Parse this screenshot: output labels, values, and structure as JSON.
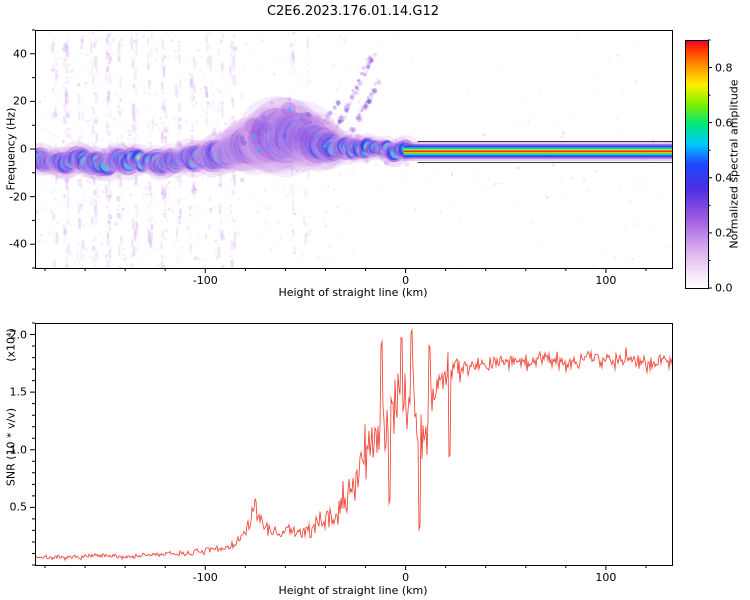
{
  "title": "C2E6.2023.176.01.14.G12",
  "chart_data": [
    {
      "type": "heatmap",
      "title": "C2E6.2023.176.01.14.G12",
      "xlabel": "Height of straight line (km)",
      "ylabel": "Frequency (Hz)",
      "xlim": [
        -185,
        133
      ],
      "ylim": [
        -50,
        50
      ],
      "xticks": {
        "v": [
          -100,
          0,
          100
        ],
        "labels": [
          "-100",
          "0",
          "100"
        ]
      },
      "yticks": {
        "v": [
          -40,
          -20,
          0,
          20,
          40
        ],
        "labels": [
          "-40",
          "-20",
          "0",
          "20",
          "40"
        ]
      },
      "xminor": 20,
      "yminor": 10,
      "colorbar": {
        "label": "Normalized spectral amplitude",
        "range": [
          0,
          0.9
        ],
        "ticks": {
          "v": [
            0,
            0.2,
            0.4,
            0.6,
            0.8
          ],
          "labels": [
            "0.0",
            "0.2",
            "0.4",
            "0.6",
            "0.8"
          ]
        },
        "minor": 0.1,
        "colormap": [
          [
            0,
            "#ffffff"
          ],
          [
            0.05,
            "#f6e8fa"
          ],
          [
            0.15,
            "#dcb0ee"
          ],
          [
            0.28,
            "#a05ae0"
          ],
          [
            0.4,
            "#4b2fe0"
          ],
          [
            0.5,
            "#1f48ff"
          ],
          [
            0.58,
            "#00c8ff"
          ],
          [
            0.66,
            "#00e87a"
          ],
          [
            0.74,
            "#7df000"
          ],
          [
            0.82,
            "#fdf000"
          ],
          [
            0.9,
            "#ff8c00"
          ],
          [
            0.97,
            "#ff2800"
          ],
          [
            1,
            "#e00040"
          ]
        ]
      },
      "signal_trace": {
        "x": [
          -185,
          -175,
          -165,
          -155,
          -145,
          -135,
          -125,
          -115,
          -105,
          -97,
          -90,
          -84,
          -78,
          -72,
          -66,
          -60,
          -54,
          -48,
          -42,
          -36,
          -30,
          -24,
          -18,
          -12,
          -6,
          0
        ],
        "freq_hz": [
          -5,
          -6,
          -5,
          -6,
          -5,
          -5,
          -6,
          -5,
          -4,
          -3,
          -2,
          -1,
          1,
          3,
          5,
          6,
          6,
          4,
          3,
          1,
          0,
          0,
          0,
          0,
          -1,
          -1
        ],
        "spread_hz": [
          3.5,
          3.5,
          3.5,
          3.5,
          3.5,
          3.5,
          3.5,
          3.5,
          3.5,
          4,
          4.5,
          5.5,
          6.5,
          7.5,
          8,
          8,
          7.5,
          6.5,
          5.5,
          4.5,
          3.5,
          3,
          3,
          3,
          3,
          3
        ],
        "intensity": [
          0.7,
          0.7,
          0.7,
          0.7,
          0.7,
          0.7,
          0.7,
          0.7,
          0.7,
          0.7,
          0.72,
          0.72,
          0.72,
          0.72,
          0.7,
          0.7,
          0.7,
          0.7,
          0.72,
          0.75,
          0.8,
          0.85,
          0.88,
          0.9,
          0.9,
          0.9
        ]
      },
      "flat_signal": {
        "x_start": 0,
        "x_end": 133,
        "freq_hz": -1,
        "layers": [
          [
            0.22,
            4.0,
            0.45
          ],
          [
            0.32,
            3.1,
            0.7
          ],
          [
            0.45,
            2.4,
            1
          ],
          [
            0.58,
            1.7,
            1
          ],
          [
            0.66,
            1.25,
            1
          ],
          [
            0.82,
            0.8,
            1
          ],
          [
            0.9,
            0.5,
            1
          ],
          [
            0.97,
            0.28,
            1
          ]
        ]
      },
      "marker_lines": {
        "freqs_hz": [
          3.2,
          -5.4
        ],
        "x_start": 6,
        "color": "#222222"
      },
      "noise_streaks": [
        {
          "x": -176,
          "s": 0.5
        },
        {
          "x": -170,
          "s": 0.9
        },
        {
          "x": -163,
          "s": 0.4
        },
        {
          "x": -156,
          "s": 0.7
        },
        {
          "x": -149,
          "s": 1.0
        },
        {
          "x": -143,
          "s": 0.5
        },
        {
          "x": -136,
          "s": 0.8
        },
        {
          "x": -128,
          "s": 0.5
        },
        {
          "x": -121,
          "s": 0.6
        },
        {
          "x": -114,
          "s": 0.4
        },
        {
          "x": -107,
          "s": 0.5
        },
        {
          "x": -99,
          "s": 0.4
        },
        {
          "x": -93,
          "s": 0.35
        },
        {
          "x": -87,
          "s": 0.6
        },
        {
          "x": -57,
          "s": 0.4
        },
        {
          "x": -50,
          "s": 0.3
        }
      ],
      "diag_streaks": [
        {
          "x1": -36,
          "f1": 6,
          "x2": -16,
          "f2": 40,
          "n": 70
        },
        {
          "x1": -30,
          "f1": 4,
          "x2": -13,
          "f2": 28,
          "n": 40
        },
        {
          "x1": -44,
          "f1": 8,
          "x2": -34,
          "f2": 20,
          "n": 18
        }
      ]
    },
    {
      "type": "line",
      "xlabel": "Height of straight line (km)",
      "ylabel": "SNR (10 * v/v)",
      "y_unit_label": "(x10⁴)",
      "xlim": [
        -185,
        133
      ],
      "ylim": [
        0,
        2.1
      ],
      "xticks": {
        "v": [
          -100,
          0,
          100
        ],
        "labels": [
          "-100",
          "0",
          "100"
        ]
      },
      "yticks": {
        "v": [
          0.5,
          1,
          1.5,
          2
        ],
        "labels": [
          "0.5",
          "1.0",
          "1.5",
          "2.0"
        ]
      },
      "xminor": 20,
      "yminor": 0.1,
      "line_color": "#f0392b",
      "profile": {
        "x": [
          -185,
          -170,
          -155,
          -140,
          -125,
          -110,
          -100,
          -92,
          -85,
          -80,
          -76,
          -72,
          -68,
          -64,
          -60,
          -55,
          -50,
          -46,
          -42,
          -38,
          -34,
          -30,
          -26,
          -22,
          -18,
          -14,
          -10,
          -6,
          -2,
          2,
          6,
          10,
          14,
          18,
          24,
          30,
          40,
          50,
          60,
          70,
          80,
          90,
          100,
          110,
          120,
          133
        ],
        "y": [
          0.07,
          0.06,
          0.08,
          0.07,
          0.09,
          0.1,
          0.12,
          0.14,
          0.18,
          0.28,
          0.45,
          0.38,
          0.3,
          0.28,
          0.3,
          0.28,
          0.3,
          0.32,
          0.35,
          0.4,
          0.45,
          0.55,
          0.7,
          0.85,
          1.0,
          1.15,
          1.25,
          1.35,
          1.45,
          1.55,
          1.3,
          1.1,
          1.5,
          1.65,
          1.7,
          1.72,
          1.75,
          1.78,
          1.75,
          1.8,
          1.76,
          1.8,
          1.78,
          1.8,
          1.76,
          1.78
        ]
      },
      "noise": {
        "x": [
          -185,
          -120,
          -100,
          -85,
          -76,
          -68,
          -55,
          -45,
          -35,
          -25,
          -15,
          -5,
          0,
          5,
          10,
          15,
          25,
          40,
          133
        ],
        "amp": [
          0.025,
          0.03,
          0.04,
          0.06,
          0.1,
          0.07,
          0.09,
          0.12,
          0.18,
          0.28,
          0.35,
          0.42,
          0.42,
          0.45,
          0.4,
          0.25,
          0.15,
          0.1,
          0.1
        ]
      },
      "spikes": [
        {
          "x": -75,
          "y": 0.58
        },
        {
          "x": -12,
          "y": 1.92
        },
        {
          "x": -8,
          "y": 0.55
        },
        {
          "x": -2,
          "y": 1.97
        },
        {
          "x": 3,
          "y": 2.02
        },
        {
          "x": 7,
          "y": 0.33
        },
        {
          "x": 12,
          "y": 1.9
        },
        {
          "x": 22,
          "y": 0.95
        }
      ]
    }
  ]
}
